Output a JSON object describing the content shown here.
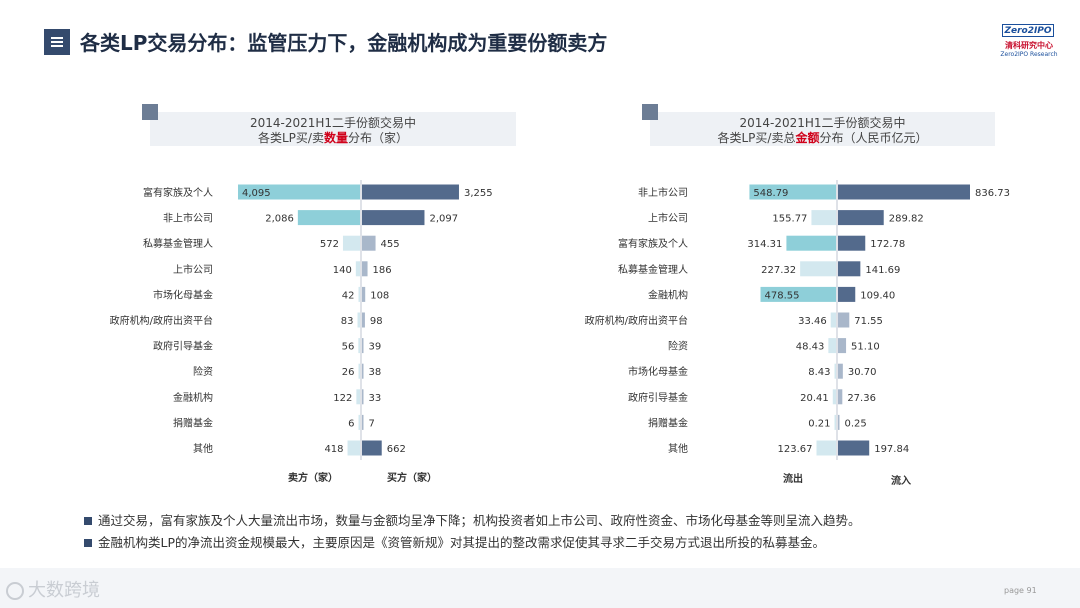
{
  "header": {
    "title": "各类LP交易分布：监管压力下，金融机构成为重要份额卖方"
  },
  "logo": {
    "box_text": "Zero2IPO",
    "cn": "清科研究中心",
    "en": "Zero2IPO Research"
  },
  "colors": {
    "sell": "#8ecfd9",
    "buy": "#536a8c",
    "sell_light": "#d3e8ef",
    "buy_light": "#a9b7ca",
    "accent": "#d0021b"
  },
  "chart_data": [
    {
      "type": "bar",
      "title_line1": "2014-2021H1二手份额交易中",
      "title_line2_pre": "各类LP买/卖",
      "title_line2_hl": "数量",
      "title_line2_post": "分布（家）",
      "categories": [
        "富有家族及个人",
        "非上市公司",
        "私募基金管理人",
        "上市公司",
        "市场化母基金",
        "政府机构/政府出资平台",
        "政府引导基金",
        "险资",
        "金融机构",
        "捐赠基金",
        "其他"
      ],
      "series": [
        {
          "name": "卖方（家）",
          "values": [
            4095,
            2086,
            572,
            140,
            42,
            83,
            56,
            26,
            122,
            6,
            418
          ],
          "labels": [
            "4,095",
            "2,086",
            "572",
            "140",
            "42",
            "83",
            "56",
            "26",
            "122",
            "6",
            "418"
          ]
        },
        {
          "name": "买方（家）",
          "values": [
            3255,
            2097,
            455,
            186,
            108,
            98,
            39,
            38,
            33,
            7,
            662
          ],
          "labels": [
            "3,255",
            "2,097",
            "455",
            "186",
            "108",
            "98",
            "39",
            "38",
            "33",
            "7",
            "662"
          ]
        }
      ]
    },
    {
      "type": "bar",
      "title_line1": "2014-2021H1二手份额交易中",
      "title_line2_pre": "各类LP买/卖总",
      "title_line2_hl": "金额",
      "title_line2_post": "分布（人民币亿元）",
      "categories": [
        "非上市公司",
        "上市公司",
        "富有家族及个人",
        "私募基金管理人",
        "金融机构",
        "政府机构/政府出资平台",
        "险资",
        "市场化母基金",
        "政府引导基金",
        "捐赠基金",
        "其他"
      ],
      "series": [
        {
          "name": "流出",
          "values": [
            548.79,
            155.77,
            314.31,
            227.32,
            478.55,
            33.46,
            48.43,
            8.43,
            20.41,
            0.21,
            123.67
          ],
          "labels": [
            "548.79",
            "155.77",
            "314.31",
            "227.32",
            "478.55",
            "33.46",
            "48.43",
            "8.43",
            "20.41",
            "0.21",
            "123.67"
          ]
        },
        {
          "name": "流入",
          "values": [
            836.73,
            289.82,
            172.78,
            141.69,
            109.4,
            71.55,
            51.1,
            30.7,
            27.36,
            0.25,
            197.84
          ],
          "labels": [
            "836.73",
            "289.82",
            "172.78",
            "141.69",
            "109.40",
            "71.55",
            "51.10",
            "30.70",
            "27.36",
            "0.25",
            "197.84"
          ]
        }
      ]
    }
  ],
  "bullets": [
    "通过交易，富有家族及个人大量流出市场，数量与金额均呈净下降；机构投资者如上市公司、政府性资金、市场化母基金等则呈流入趋势。",
    "金融机构类LP的净流出资金规模最大，主要原因是《资管新规》对其提出的整改需求促使其寻求二手交易方式退出所投的私募基金。"
  ],
  "footer": {
    "page": "page  91",
    "watermark": "大数跨境"
  }
}
